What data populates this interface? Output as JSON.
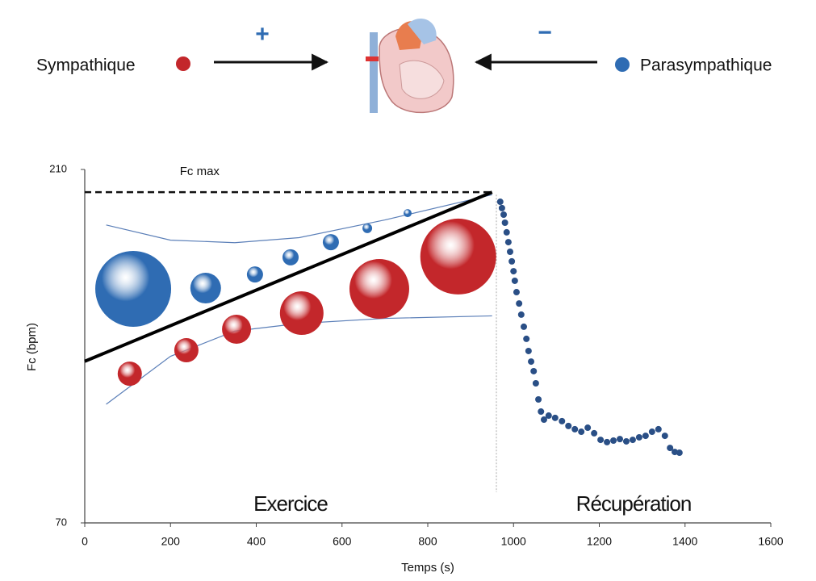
{
  "header": {
    "plus": "+",
    "minus": "−"
  },
  "chart_data": {
    "type": "bubble",
    "xlabel": "Temps (s)",
    "ylabel": "Fc (bpm)",
    "xlim": [
      0,
      1600
    ],
    "ylim": [
      70,
      210
    ],
    "xticks": [
      0,
      200,
      400,
      600,
      800,
      1000,
      1200,
      1400,
      1600
    ],
    "yticks": [
      70,
      210
    ],
    "series": [
      {
        "name": "Sympathique",
        "type": "bubble",
        "color": "#c3272b",
        "x": [
          105,
          237,
          354,
          506,
          687,
          871
        ],
        "values": [
          129.1,
          138.4,
          146.7,
          153.1,
          162.7,
          175.5
        ],
        "sizes": [
          15,
          15,
          18,
          27,
          37,
          47
        ]
      },
      {
        "name": "Parasympathique",
        "type": "bubble",
        "color": "#2f6cb3",
        "x": [
          113,
          282,
          397,
          480,
          574,
          659,
          753
        ],
        "values": [
          162.7,
          163,
          168.4,
          175.2,
          181.2,
          186.7,
          192.7
        ],
        "sizes": [
          47,
          19,
          10,
          10,
          10,
          6,
          5
        ]
      },
      {
        "name": "Fc max",
        "type": "line",
        "dash": true,
        "color": "#111111",
        "x": [
          0,
          950
        ],
        "values": [
          201,
          201
        ]
      }
    ],
    "trend": {
      "color": "#000000",
      "x": [
        0,
        950
      ],
      "values": [
        134,
        201
      ]
    },
    "band_upper": {
      "color": "#5b7fb8",
      "x": [
        50,
        200,
        350,
        500,
        700,
        950
      ],
      "values": [
        188,
        182,
        181,
        183,
        190,
        200
      ]
    },
    "band_lower": {
      "color": "#5b7fb8",
      "x": [
        50,
        200,
        350,
        500,
        700,
        950
      ],
      "values": [
        117,
        136,
        146,
        149,
        151,
        152
      ]
    },
    "phase_boundary": 960,
    "phases": [
      "Exercice",
      "Récupération"
    ],
    "recovery": {
      "color": "#2a4f86",
      "x": [
        969,
        973,
        977,
        980,
        984,
        988,
        992,
        996,
        1000,
        1003,
        1007,
        1013,
        1018,
        1024,
        1030,
        1035,
        1041,
        1047,
        1052,
        1058,
        1064,
        1071,
        1082,
        1097,
        1113,
        1128,
        1143,
        1158,
        1173,
        1188,
        1203,
        1218,
        1233,
        1248,
        1263,
        1278,
        1293,
        1308,
        1323,
        1338,
        1353,
        1365,
        1376,
        1387
      ],
      "values": [
        197.2,
        194.7,
        192.1,
        188.9,
        185.1,
        181.2,
        177.4,
        173.6,
        169.7,
        165.9,
        161.4,
        156.9,
        152.5,
        147.7,
        142.9,
        138.1,
        133.9,
        130.1,
        125.3,
        118.9,
        114.1,
        110.9,
        112.5,
        111.6,
        110.3,
        108.4,
        107.1,
        106.1,
        107.7,
        105.5,
        102.9,
        102,
        102.6,
        103.2,
        102.3,
        102.9,
        103.9,
        104.5,
        106.1,
        107.1,
        104.5,
        99.7,
        98.1,
        97.8
      ]
    }
  }
}
